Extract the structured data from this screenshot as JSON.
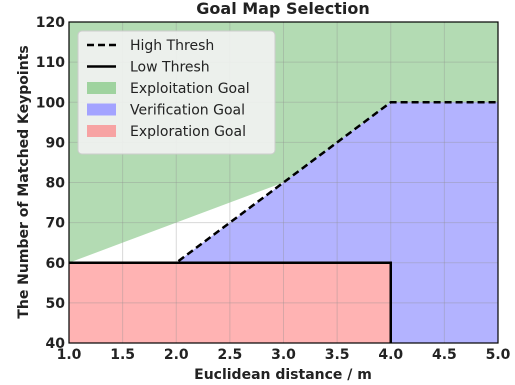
{
  "chart_data": {
    "type": "area",
    "title": "Goal Map Selection",
    "xlabel": "Euclidean distance / m",
    "ylabel": "The Number of Matched Keypoints",
    "xlim": [
      1.0,
      5.0
    ],
    "ylim": [
      40,
      120
    ],
    "xticks": [
      "1.0",
      "1.5",
      "2.0",
      "2.5",
      "3.0",
      "3.5",
      "4.0",
      "4.5",
      "5.0"
    ],
    "yticks": [
      "40",
      "50",
      "60",
      "70",
      "80",
      "90",
      "100",
      "110",
      "120"
    ],
    "grid": true,
    "legend_position": "top-left",
    "lines": [
      {
        "name": "High Thresh",
        "style": "dashed",
        "color": "#000000",
        "x": [
          1.0,
          2.0,
          4.0,
          5.0
        ],
        "y": [
          60,
          60,
          100,
          100
        ]
      },
      {
        "name": "Low Thresh",
        "style": "solid",
        "color": "#000000",
        "x": [
          1.0,
          4.0,
          4.0
        ],
        "y": [
          60,
          60,
          40
        ]
      }
    ],
    "regions": [
      {
        "name": "Exploitation Goal",
        "color": "#b3dbb3",
        "legend_color": "#9fd39f",
        "polygon_x": [
          1.0,
          1.0,
          2.0,
          4.0,
          5.0,
          5.0
        ],
        "polygon_y": [
          60,
          120,
          120,
          120,
          120,
          100
        ]
      },
      {
        "name": "Verification Goal",
        "color": "#b3b3ff",
        "legend_color": "#a3a3ff",
        "polygon_x": [
          2.0,
          4.0,
          5.0,
          5.0,
          4.0,
          4.0,
          1.0,
          1.0
        ],
        "polygon_y": [
          60,
          100,
          100,
          40,
          40,
          60,
          60,
          60
        ]
      },
      {
        "name": "Exploration Goal",
        "color": "#ffb3b3",
        "legend_color": "#f7a3a3",
        "polygon_x": [
          1.0,
          4.0,
          4.0,
          1.0
        ],
        "polygon_y": [
          60,
          60,
          40,
          40
        ]
      }
    ],
    "colors": {
      "grid": "#909090",
      "axis": "#000000",
      "legend_bg": "#f2f2f2",
      "legend_border": "#cccccc"
    }
  }
}
